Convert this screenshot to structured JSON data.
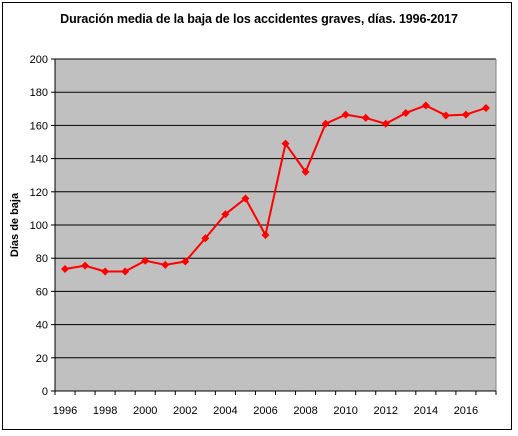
{
  "chart_data": {
    "type": "line",
    "title": "Duración media de la baja de los accidentes graves, días. 1996-2017",
    "xlabel": "",
    "ylabel": "Días de baja",
    "x_tick_labels": [
      "1996",
      "1998",
      "2000",
      "2002",
      "2004",
      "2006",
      "2008",
      "2010",
      "2012",
      "2014",
      "2016"
    ],
    "y_tick_labels": [
      "0",
      "20",
      "40",
      "60",
      "80",
      "100",
      "120",
      "140",
      "160",
      "180",
      "200"
    ],
    "ylim": [
      0,
      200
    ],
    "xlim": [
      1996,
      2017
    ],
    "grid": true,
    "legend": "none",
    "series": [
      {
        "x": [
          1996,
          1997,
          1998,
          1999,
          2000,
          2001,
          2002,
          2003,
          2004,
          2005,
          2006,
          2007,
          2008,
          2009,
          2010,
          2011,
          2012,
          2013,
          2014,
          2015,
          2016,
          2017
        ],
        "values": [
          73.5,
          75.5,
          72,
          72,
          78.5,
          76,
          78,
          92,
          106.5,
          116,
          94,
          149,
          132,
          161,
          166.5,
          164.5,
          161,
          167.5,
          172,
          166,
          166.5,
          170.5
        ]
      }
    ],
    "colors": {
      "line": "#ff0000",
      "plot_background": "#c0c0c0",
      "gridline": "#000000"
    }
  }
}
